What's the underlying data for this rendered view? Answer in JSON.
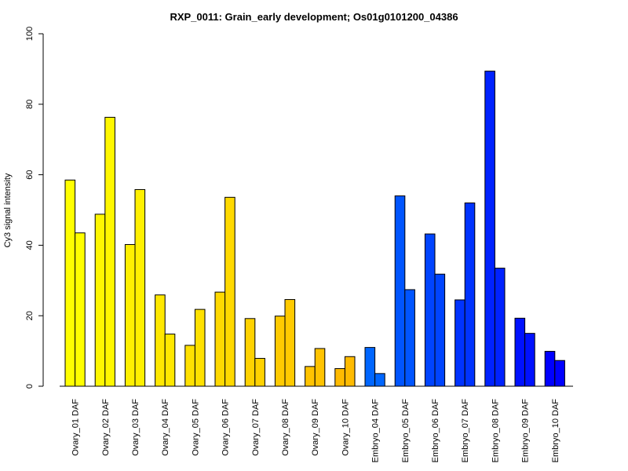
{
  "chart_data": {
    "type": "bar",
    "title": "RXP_0011: Grain_early development; Os01g0101200_04386",
    "xlabel": "",
    "ylabel": "Cy3 signal intensity",
    "ylim": [
      0,
      100
    ],
    "yticks": [
      0,
      20,
      40,
      60,
      80,
      100
    ],
    "grid": false,
    "legend": "none",
    "categories": [
      "Ovary_01 DAF",
      "Ovary_02 DAF",
      "Ovary_03 DAF",
      "Ovary_04 DAF",
      "Ovary_05 DAF",
      "Ovary_06 DAF",
      "Ovary_07 DAF",
      "Ovary_08 DAF",
      "Ovary_09 DAF",
      "Ovary_10 DAF",
      "Embryo_04 DAF",
      "Embryo_05 DAF",
      "Embryo_06 DAF",
      "Embryo_07 DAF",
      "Embryo_08 DAF",
      "Embryo_09 DAF",
      "Embryo_10 DAF"
    ],
    "values": [
      [
        58.5,
        43.5
      ],
      [
        48.8,
        76.3
      ],
      [
        40.2,
        55.8
      ],
      [
        25.9,
        14.8
      ],
      [
        11.6,
        21.8
      ],
      [
        26.7,
        53.6
      ],
      [
        19.2,
        7.9
      ],
      [
        19.9,
        24.6
      ],
      [
        5.6,
        10.7
      ],
      [
        5.0,
        8.4
      ],
      [
        11.0,
        3.6
      ],
      [
        54.0,
        27.4
      ],
      [
        43.2,
        31.8
      ],
      [
        24.5,
        52.0
      ],
      [
        89.4,
        33.5
      ],
      [
        19.3,
        15.0
      ],
      [
        9.9,
        7.3
      ]
    ],
    "colors": [
      "#FFFF00",
      "#FFF700",
      "#FFF000",
      "#FFE800",
      "#FFE100",
      "#FFD900",
      "#FFD200",
      "#FFCA00",
      "#FFC300",
      "#FFBB00",
      "#0066FF",
      "#0055FF",
      "#0044FF",
      "#0033FF",
      "#0022FF",
      "#0011FF",
      "#0000FF"
    ]
  }
}
